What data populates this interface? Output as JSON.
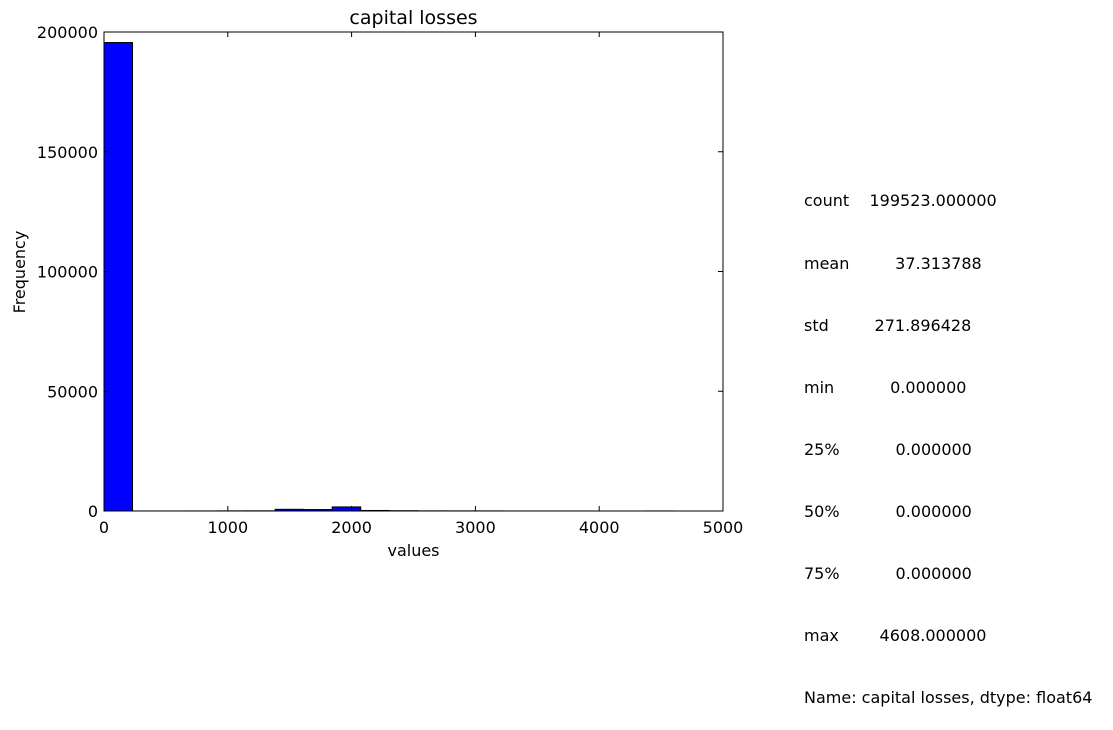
{
  "chart_data": {
    "type": "bar",
    "title": "capital losses",
    "xlabel": "values",
    "ylabel": "Frequency",
    "xlim": [
      0,
      5000
    ],
    "ylim": [
      0,
      200000
    ],
    "x_ticks": [
      "0",
      "1000",
      "2000",
      "3000",
      "4000",
      "5000"
    ],
    "y_ticks": [
      "0",
      "50000",
      "100000",
      "150000",
      "200000"
    ],
    "grid": false,
    "bin_edges": [
      0,
      230.4,
      460.8,
      691.2,
      921.6,
      1152,
      1382.4,
      1612.8,
      1843.2,
      2073.6,
      2304,
      2534.4,
      2764.8,
      2995.2,
      3225.6,
      3456,
      3686.4,
      3916.8,
      4147.2,
      4377.6,
      4608
    ],
    "values": [
      195600,
      20,
      20,
      30,
      60,
      70,
      700,
      600,
      1700,
      220,
      120,
      60,
      50,
      40,
      20,
      20,
      15,
      10,
      5,
      30
    ],
    "bar_color": "#0000ff"
  },
  "stats_lines": [
    "count    199523.000000",
    "mean         37.313788",
    "std         271.896428",
    "min           0.000000",
    "25%           0.000000",
    "50%           0.000000",
    "75%           0.000000",
    "max        4608.000000",
    "Name: capital losses, dtype: float64"
  ]
}
